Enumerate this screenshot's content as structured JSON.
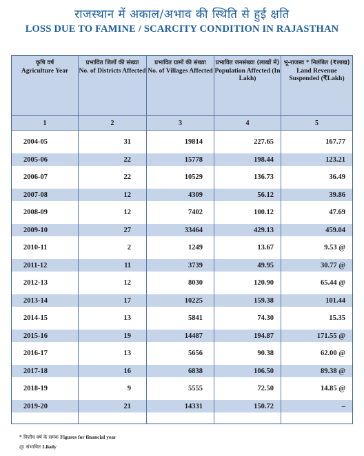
{
  "title_hi": "राजस्थान में अकाल/अभाव की स्थिति से हुई क्षति",
  "title_en": "LOSS DUE TO FAMINE / SCARCITY CONDITION IN RAJASTHAN",
  "columns": [
    {
      "hi": "कृषि वर्ष",
      "en": "Agriculture Year",
      "num": "1"
    },
    {
      "hi": "प्रभावित जिलों की संख्या",
      "en": "No. of Districts Affected",
      "num": "2"
    },
    {
      "hi": "प्रभावित ग्रामों की संख्या",
      "en": "No. of Villages Affected",
      "num": "3"
    },
    {
      "hi": "प्रभावित जनसंख्या (लाखों में)",
      "en": "Population Affected (In Lakh)",
      "num": "4"
    },
    {
      "hi": "भू-राजस्व * निलंबित (₹लाख)",
      "en": "Land Revenue Suspended (₹Lakh)",
      "num": "5"
    }
  ],
  "rows": [
    {
      "year": "2004-05",
      "districts": "31",
      "villages": "19814",
      "population": "227.65",
      "revenue": "167.77"
    },
    {
      "year": "2005-06",
      "districts": "22",
      "villages": "15778",
      "population": "198.44",
      "revenue": "123.21"
    },
    {
      "year": "2006-07",
      "districts": "22",
      "villages": "10529",
      "population": "136.73",
      "revenue": "36.49"
    },
    {
      "year": "2007-08",
      "districts": "12",
      "villages": "4309",
      "population": "56.12",
      "revenue": "39.86"
    },
    {
      "year": "2008-09",
      "districts": "12",
      "villages": "7402",
      "population": "100.12",
      "revenue": "47.69"
    },
    {
      "year": "2009-10",
      "districts": "27",
      "villages": "33464",
      "population": "429.13",
      "revenue": "459.04"
    },
    {
      "year": "2010-11",
      "districts": "2",
      "villages": "1249",
      "population": "13.67",
      "revenue": "9.53 @"
    },
    {
      "year": "2011-12",
      "districts": "11",
      "villages": "3739",
      "population": "49.95",
      "revenue": "30.77 @"
    },
    {
      "year": "2012-13",
      "districts": "12",
      "villages": "8030",
      "population": "120.90",
      "revenue": "65.44 @"
    },
    {
      "year": "2013-14",
      "districts": "17",
      "villages": "10225",
      "population": "159.38",
      "revenue": "101.44"
    },
    {
      "year": "2014-15",
      "districts": "13",
      "villages": "5841",
      "population": "74.30",
      "revenue": "15.35"
    },
    {
      "year": "2015-16",
      "districts": "19",
      "villages": "14487",
      "population": "194.87",
      "revenue": "171.55 @"
    },
    {
      "year": "2016-17",
      "districts": "13",
      "villages": "5656",
      "population": "90.38",
      "revenue": "62.00 @"
    },
    {
      "year": "2017-18",
      "districts": "16",
      "villages": "6838",
      "population": "106.50",
      "revenue": "89.38 @"
    },
    {
      "year": "2018-19",
      "districts": "9",
      "villages": "5555",
      "population": "72.50",
      "revenue": "14.85 @"
    },
    {
      "year": "2019-20",
      "districts": "21",
      "villages": "14331",
      "population": "150.72",
      "revenue": "–"
    }
  ],
  "footnotes": [
    {
      "symbol": "*",
      "hi": "वित्तीय वर्ष के समंक",
      "en": "Figures for financial year"
    },
    {
      "symbol": "@",
      "hi": "संभावित",
      "en": "Likely"
    }
  ],
  "colors": {
    "title": "#1a5ea0",
    "band": "#c6d4ea",
    "border": "#3d5f95"
  }
}
